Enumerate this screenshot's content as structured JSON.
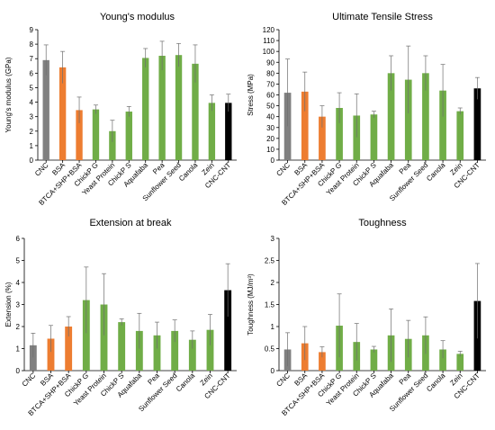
{
  "chart_data": [
    {
      "type": "bar",
      "title": "Young's modulus",
      "ylabel": "Young's modulus (GPa)",
      "xlabel": "",
      "ylim": [
        0,
        9
      ],
      "yticks": [
        0,
        1,
        2,
        3,
        4,
        5,
        6,
        7,
        8,
        9
      ],
      "ytick_labels": [
        "0",
        "1",
        "2",
        "3",
        "4",
        "5",
        "6",
        "7",
        "8",
        "9"
      ],
      "categories": [
        "CNC",
        "BSA",
        "BTCA+SHP+BSA",
        "ChickP G",
        "Yeast Protein",
        "ChickP S",
        "Aquafaba",
        "Pea",
        "Sunflower Seed",
        "Canola",
        "Zein",
        "CNC-CNT"
      ],
      "values": [
        6.9,
        6.4,
        3.45,
        3.5,
        2.0,
        3.35,
        7.05,
        7.2,
        7.25,
        6.65,
        3.95,
        3.95
      ],
      "errors": [
        1.05,
        1.1,
        0.9,
        0.3,
        0.75,
        0.35,
        0.65,
        1.0,
        0.8,
        1.3,
        0.55,
        0.6
      ],
      "colors": [
        "#808080",
        "#ed7d31",
        "#ed7d31",
        "#70ad47",
        "#70ad47",
        "#70ad47",
        "#70ad47",
        "#70ad47",
        "#70ad47",
        "#70ad47",
        "#70ad47",
        "#000000"
      ]
    },
    {
      "type": "bar",
      "title": "Ultimate Tensile Stress",
      "ylabel": "Stress (MPa)",
      "xlabel": "",
      "ylim": [
        0,
        120
      ],
      "yticks": [
        0,
        10,
        20,
        30,
        40,
        50,
        60,
        70,
        80,
        90,
        100,
        110,
        120
      ],
      "ytick_labels": [
        "0",
        "10",
        "20",
        "30",
        "40",
        "50",
        "60",
        "70",
        "80",
        "90",
        "100",
        "110",
        "120"
      ],
      "categories": [
        "CNC",
        "BSA",
        "BTCA+SHP+BSA",
        "ChickP G",
        "Yeast Protein",
        "ChickP S",
        "Aquafaba",
        "Pea",
        "Sunflower Seed",
        "Canola",
        "Zein",
        "CNC-CNT"
      ],
      "values": [
        62,
        63,
        40,
        48,
        41,
        42,
        80,
        74,
        80,
        64,
        45,
        66
      ],
      "errors": [
        31,
        18,
        10,
        14,
        20,
        3,
        16,
        31,
        16,
        24,
        3,
        10
      ],
      "colors": [
        "#808080",
        "#ed7d31",
        "#ed7d31",
        "#70ad47",
        "#70ad47",
        "#70ad47",
        "#70ad47",
        "#70ad47",
        "#70ad47",
        "#70ad47",
        "#70ad47",
        "#000000"
      ]
    },
    {
      "type": "bar",
      "title": "Extension at break",
      "ylabel": "Extension (%)",
      "xlabel": "",
      "ylim": [
        0,
        6
      ],
      "yticks": [
        0,
        1,
        2,
        3,
        4,
        5,
        6
      ],
      "ytick_labels": [
        "0",
        "1",
        "2",
        "3",
        "4",
        "5",
        "6"
      ],
      "categories": [
        "CNC",
        "BSA",
        "BTCA+SHP+BSA",
        "ChickP G",
        "Yeast Protein",
        "ChickP S",
        "Aquafaba",
        "Pea",
        "Sunflower Seed",
        "Canola",
        "Zein",
        "CNC-CNT"
      ],
      "values": [
        1.15,
        1.45,
        2.0,
        3.2,
        3.0,
        2.2,
        1.8,
        1.6,
        1.8,
        1.4,
        1.85,
        3.65
      ],
      "errors": [
        0.55,
        0.6,
        0.45,
        1.5,
        1.4,
        0.15,
        0.8,
        0.6,
        0.5,
        0.4,
        0.7,
        1.2
      ],
      "colors": [
        "#808080",
        "#ed7d31",
        "#ed7d31",
        "#70ad47",
        "#70ad47",
        "#70ad47",
        "#70ad47",
        "#70ad47",
        "#70ad47",
        "#70ad47",
        "#70ad47",
        "#000000"
      ]
    },
    {
      "type": "bar",
      "title": "Toughness",
      "ylabel": "Toughness (MJ/m³)",
      "xlabel": "",
      "ylim": [
        0,
        3
      ],
      "yticks": [
        0,
        0.5,
        1,
        1.5,
        2,
        2.5,
        3
      ],
      "ytick_labels": [
        "0",
        "0.5",
        "1",
        "1.5",
        "2",
        "2.5",
        "3"
      ],
      "categories": [
        "CNC",
        "BSA",
        "BTCA+SHP+BSA",
        "ChickP G",
        "Yeast Protein",
        "ChickP S",
        "Aquafaba",
        "Pea",
        "Sunflower Seed",
        "Canola",
        "Zein",
        "CNC-CNT"
      ],
      "values": [
        0.48,
        0.62,
        0.42,
        1.02,
        0.65,
        0.48,
        0.8,
        0.72,
        0.8,
        0.48,
        0.38,
        1.58
      ],
      "errors": [
        0.38,
        0.38,
        0.12,
        0.72,
        0.42,
        0.07,
        0.6,
        0.42,
        0.42,
        0.2,
        0.06,
        0.85
      ],
      "colors": [
        "#808080",
        "#ed7d31",
        "#ed7d31",
        "#70ad47",
        "#70ad47",
        "#70ad47",
        "#70ad47",
        "#70ad47",
        "#70ad47",
        "#70ad47",
        "#70ad47",
        "#000000"
      ]
    }
  ]
}
